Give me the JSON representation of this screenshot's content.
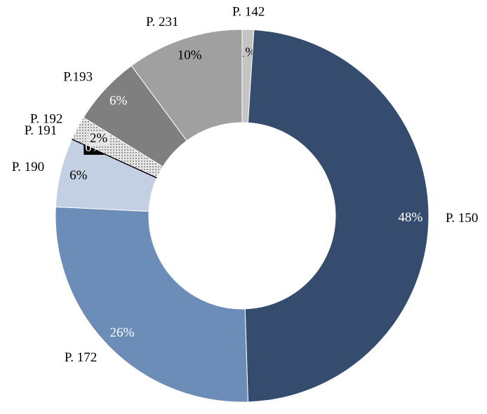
{
  "chart_data": {
    "type": "donut",
    "categories": [
      "P. 142",
      "P. 150",
      "P. 172",
      "P. 190",
      "P. 191",
      "P. 192",
      "P.193",
      "P. 231"
    ],
    "values": [
      1,
      48,
      26,
      6,
      0,
      2,
      6,
      10
    ],
    "value_labels": [
      "1%",
      "48%",
      "26%",
      "6%",
      "0%",
      "2%",
      "6%",
      "10%"
    ],
    "colors": [
      "#c4c4c4",
      "#364c6e",
      "#6d8db9",
      "#c3cfe3",
      "#000000",
      "#e6e6e6",
      "#7f7f7f",
      "#a0a0a0"
    ]
  }
}
